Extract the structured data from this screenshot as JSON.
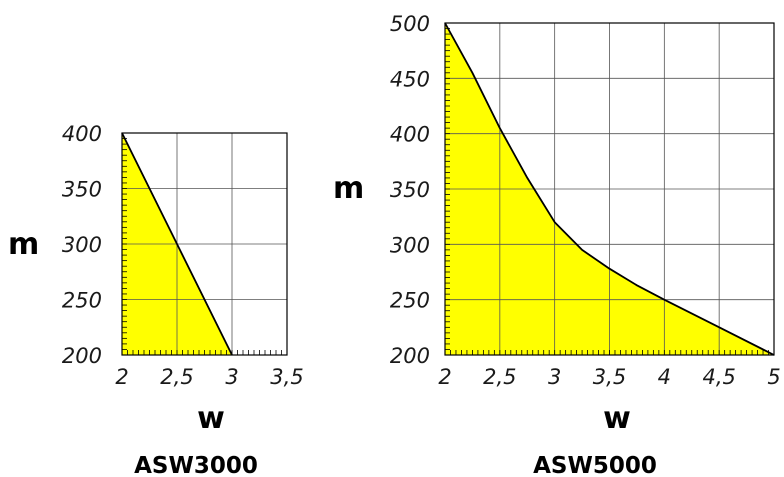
{
  "chart_data": [
    {
      "type": "area",
      "caption": "ASW3000",
      "xlabel": "w",
      "ylabel": "m",
      "xlim": [
        2,
        3.5
      ],
      "ylim": [
        200,
        400
      ],
      "x_ticks": [
        "2",
        "2,5",
        "3",
        "3,5"
      ],
      "y_ticks": [
        "200",
        "250",
        "300",
        "350",
        "400"
      ],
      "grid": true,
      "fill_color": "#ffff00",
      "series": [
        {
          "x": [
            2,
            2.5,
            3
          ],
          "y": [
            400,
            300,
            200
          ]
        }
      ]
    },
    {
      "type": "area",
      "caption": "ASW5000",
      "xlabel": "w",
      "ylabel": "m",
      "xlim": [
        2,
        5
      ],
      "ylim": [
        200,
        500
      ],
      "x_ticks": [
        "2",
        "2,5",
        "3",
        "3,5",
        "4",
        "4,5",
        "5"
      ],
      "y_ticks": [
        "200",
        "250",
        "300",
        "350",
        "400",
        "450",
        "500"
      ],
      "grid": true,
      "fill_color": "#ffff00",
      "series": [
        {
          "x": [
            2,
            2.25,
            2.5,
            2.75,
            3,
            3.25,
            3.5,
            3.75,
            4,
            4.5,
            5
          ],
          "y": [
            500,
            455,
            405,
            360,
            320,
            295,
            278,
            263,
            250,
            225,
            200
          ]
        }
      ]
    }
  ]
}
